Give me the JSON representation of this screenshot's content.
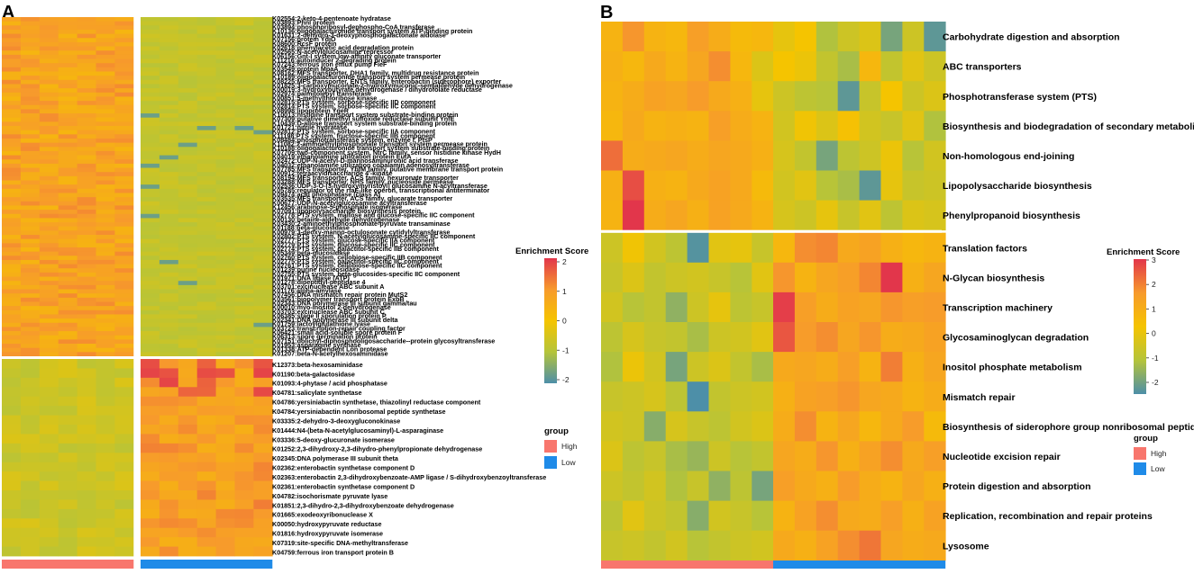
{
  "colors": {
    "high": "#f8766d",
    "low": "#1f8be8",
    "scale": [
      "#4d8fa8",
      "#b5c43a",
      "#f5c400",
      "#f79a2c",
      "#e2364b"
    ]
  },
  "panel_a": {
    "letter": "A",
    "legend": {
      "title": "Enrichment Score",
      "ticks": [
        "2",
        "1",
        "0",
        "-1",
        "-2"
      ],
      "group_title": "group",
      "group_high": "High",
      "group_low": "Low"
    }
  },
  "panel_b": {
    "letter": "B",
    "legend": {
      "title": "Enrichment Score",
      "ticks": [
        "3",
        "2",
        "1",
        "0",
        "-1",
        "-2"
      ],
      "group_title": "group",
      "group_high": "High",
      "group_low": "Low"
    }
  },
  "chart_data": [
    {
      "type": "heatmap",
      "title": "A",
      "value_range": [
        -2,
        2
      ],
      "columns": {
        "High": 7,
        "Low": 7
      },
      "row_split_after": 81,
      "rows": [
        "K02554:2-keto-4-pentenoate hydratase",
        "K03893:PhnI protein",
        "K03894:phosphoribosyl-dephospho-CoA transferase",
        "K10136:oligogalacturonide transport system ATP-binding protein",
        "K01631:2-dehydro-3-deoxyphosphogalactonate aldolase",
        "K07156:protein YdjO",
        "K08600:RcsF protein",
        "K02618:phenylacetic acid degradation protein",
        "K02565:N-acetylglucosamine repressor",
        "K06156:Gnt-I system low-affinity gluconate transporter",
        "K11216:autoinducer 2-degrading protein",
        "K07243:ferrous iron efflux pump FieF",
        "K03549:protein MpaA",
        "K08162:MFS transporter, DHA1 family, multidrug resistance protein",
        "K10189:oligogalacturonide transport system permease protein",
        "K08225:MFS transporter, ENTS family, enterobactin (siderophore) exporter",
        "K01825:3-carboxymuconate-2-hydroxymuconic-semialdehyde dehydrogenase",
        "K00019:3-hydroxybutyrate dehydrogenase / dihydrofolate reductase",
        "K02974:palmitoleoyl transferase",
        "K00851:5-methylthioribose kinase",
        "K02815:PTS system, sorbose-specific IID component",
        "K02814:PTS system, sorbose-specific IIC component",
        "K08998:lipoprotein YgeR",
        "K10013:histidine transport system substrate-binding protein",
        "K07309:putative dimethyl sulfoxide reductase subunit YnfE",
        "K10439:D-allose transport system substrate-binding protein",
        "K01721:nitrile hydratase",
        "K02812:PTS system, sorbose-specific IIA component",
        "K11198:PTS system, fructose-specific IIB component",
        "K08484:phosphotransferase system, enzyme I, PtsP",
        "K11082:2-aminoethylphosphonate transport system permease protein",
        "K10188:oligogalacturonide transport system substrate-binding protein",
        "K07709:two-component system, NtrC family, sensor histidine kinase HydH",
        "K04019:ethanolamine utilization protein EutA",
        "K02472:UDP-N-acetyl-D-mannosaminuronic acid transferase",
        "K04032:ethanolamine utilization cobalamin adenosyltransferase",
        "K07785:MFS transporter, YbfM family, putative membrane transport protein",
        "K00912:tetraacyldisaccharide 4'-kinase",
        "K08194:MFS transporter, ACS family, hexuronate transporter",
        "K03288:MFS transporter, NHS family, nucleoside permease",
        "K02536:UDP-3-O-[3-hydroxymyristoyl] glucosamine N-acyltransferase",
        "K05785:regulator of the rfaE-like operon, transcriptional antiterminator",
        "K09474:acid phosphatase (class A)",
        "K03535:MFS transporter, ACS family, glucarate transporter",
        "K00677:UDP-N-acetylglucosamine acyltransferase",
        "K12456:arabinose-5-phosphate isomerase",
        "K07091:lipopolysaccharide biosynthesis protein",
        "K02778:PTS system, maltose and glucose-specific IIC component",
        "K00130:betaine-aldehyde dehydrogenase",
        "K03430:2-aminoethylphosphonate-pyruvate transaminase",
        "K01188:beta-glucosidase",
        "K00979:3-deoxy-manno-octulosonate cytidylyltransferase",
        "K02802:PTS system, N-acetylglucosamine-specific IIC component",
        "K02777:PTS system, glucose-specific IIA component",
        "K02779:PTS system, glucose-specific IIC component",
        "K02774:PTS system, galactitol-specific IIB component",
        "K05349:beta-glucosidase",
        "K02760:PTS system, cellobiose-specific IIB component",
        "K02775:PTS system, galactitol-specific IIC component",
        "K02761:PTS system, cellobiose-specific IIC component",
        "K01239:purine nucleosidase",
        "K02755:PTS system, beta-glucosides-specific IIC component",
        "K01971:DNA ligase (ATP)",
        "K01278:dipeptidyl-peptidase 4",
        "K03701:excinuclease ABC subunit A",
        "K01176:alpha-amylase",
        "K07456:DNA mismatch repair protein MutS2",
        "K03561:biopolymer transport protein ExbB",
        "K02343:DNA polymerase III subunit gamma/tau",
        "K00010:myo-inositol 2-dehydrogenase",
        "K03703:excinuclease ABC subunit C",
        "K06385:stage II sporulation protein P",
        "K02341:DNA polymerase III subunit delta",
        "K01759:lactoylglutathione lyase",
        "K03723:transcription-repair coupling factor",
        "K06421:small acid-soluble spore protein F",
        "K06313:spore germination protein",
        "K07151:dolichyl-diphosphooligosaccharide--protein glycosyltransferase",
        "K01953:asparagine synthase",
        "K01338:ATP-dependent Lon protease",
        "K01207:beta-N-acetylhexosaminidase",
        "K12373:beta-hexosaminidase",
        "K01190:beta-galactosidase",
        "K01093:4-phytase / acid phosphatase",
        "K04781:salicylate synthetase",
        "K04786:yersiniabactin synthetase, thiazolinyl reductase component",
        "K04784:yersiniabactin nonribosomal peptide synthetase",
        "K03335:2-dehydro-3-deoxygluconokinase",
        "K01444:N4-(beta-N-acetylglucosaminyl)-L-asparaginase",
        "K03336:5-deoxy-glucuronate isomerase",
        "K01252:2,3-dihydroxy-2,3-dihydro-phenylpropionate dehydrogenase",
        "K02345:DNA polymerase III subunit theta",
        "K02362:enterobactin synthetase component D",
        "K02363:enterobactin 2,3-dihydroxybenzoate-AMP ligase / S-dihydroxybenzoyltransferase",
        "K02361:enterobactin synthetase component D",
        "K04782:isochorismate pyruvate lyase",
        "K01851:2,3-dihydro-2,3-dihydroxybenzoate dehydrogenase",
        "K01665:exodeoxyribonuclease X",
        "K00050:hydroxypyruvate reductase",
        "K01816:hydroxypyruvate isomerase",
        "K07319:site-specific DNA-methyltransferase",
        "K04759:ferrous iron transport protein B"
      ]
    },
    {
      "type": "heatmap",
      "title": "B",
      "value_range": [
        -2,
        3
      ],
      "columns": {
        "High": 8,
        "Low": 8
      },
      "row_split_after": 7,
      "rows": [
        "Carbohydrate digestion and absorption",
        "ABC transporters",
        "Phosphotransferase system (PTS)",
        "Biosynthesis and biodegradation of secondary metabolites",
        "Non-homologous end-joining",
        "Lipopolysaccharide biosynthesis",
        "Phenylpropanoid biosynthesis",
        "Translation factors",
        "N-Glycan biosynthesis",
        "Transcription machinery",
        "Glycosaminoglycan degradation",
        "Inositol phosphate metabolism",
        "Mismatch repair",
        "Biosynthesis of siderophore group nonribosomal peptides",
        "Nucleotide excision repair",
        "Protein digestion and absorption",
        "Replication, recombination and repair proteins",
        "Lysosome"
      ],
      "values": [
        [
          1.0,
          1.8,
          1.0,
          0.9,
          1.6,
          1.2,
          0.8,
          0.9,
          0.2,
          0.5,
          -0.8,
          -0.3,
          0.0,
          -1.5,
          -0.3,
          -1.8
        ],
        [
          1.1,
          0.9,
          1.3,
          1.0,
          1.4,
          1.9,
          0.9,
          0.0,
          0.5,
          0.3,
          -0.5,
          -0.9,
          0.9,
          -0.5,
          0.1,
          -0.3
        ],
        [
          1.0,
          1.2,
          1.5,
          1.4,
          1.7,
          1.3,
          1.1,
          0.2,
          -0.3,
          -0.6,
          -0.7,
          -1.8,
          -0.4,
          0.5,
          -0.3,
          0.0
        ],
        [
          0.9,
          1.3,
          1.0,
          1.1,
          1.0,
          1.6,
          1.2,
          1.0,
          -0.2,
          0.4,
          0.0,
          0.6,
          -0.2,
          -0.4,
          0.1,
          -0.8
        ],
        [
          2.3,
          1.2,
          1.3,
          1.4,
          1.2,
          1.4,
          1.3,
          1.1,
          -0.1,
          -0.5,
          -1.5,
          -0.6,
          -0.3,
          0.3,
          -0.7,
          -0.2
        ],
        [
          1.1,
          2.7,
          1.1,
          1.0,
          1.3,
          1.5,
          1.3,
          0.8,
          -0.2,
          0.1,
          -0.7,
          -0.9,
          -1.8,
          0.2,
          -0.4,
          -0.3
        ],
        [
          1.0,
          3.0,
          1.2,
          1.4,
          1.1,
          1.5,
          1.3,
          1.0,
          -0.1,
          -0.3,
          0.2,
          -0.4,
          0.1,
          -0.6,
          0.0,
          -0.1
        ],
        [
          -0.3,
          0.4,
          -0.2,
          -0.6,
          -1.9,
          0.1,
          0.2,
          -0.4,
          0.9,
          1.9,
          2.0,
          1.3,
          1.5,
          1.1,
          0.9,
          1.0
        ],
        [
          -0.4,
          0.0,
          -0.5,
          -0.3,
          -0.2,
          -0.4,
          -0.7,
          0.1,
          1.8,
          1.0,
          1.4,
          1.6,
          2.0,
          3.0,
          1.1,
          1.4
        ],
        [
          -0.2,
          -0.7,
          -0.5,
          -1.2,
          -0.3,
          0.2,
          -0.6,
          -0.4,
          2.9,
          1.6,
          1.2,
          1.5,
          1.4,
          1.8,
          1.6,
          1.7
        ],
        [
          -0.6,
          -0.1,
          -0.4,
          -0.5,
          -0.9,
          -0.3,
          -0.2,
          0.1,
          2.6,
          1.7,
          1.9,
          1.4,
          1.8,
          1.2,
          1.3,
          1.5
        ],
        [
          -0.8,
          0.3,
          -0.2,
          -1.5,
          -0.3,
          0.0,
          -0.5,
          -0.9,
          1.3,
          1.4,
          1.2,
          1.6,
          1.0,
          2.1,
          1.1,
          1.4
        ],
        [
          -0.4,
          -0.3,
          -0.1,
          -0.6,
          -2.0,
          -0.5,
          -0.3,
          -0.2,
          1.1,
          1.5,
          1.6,
          1.8,
          1.4,
          1.3,
          1.0,
          1.2
        ],
        [
          -0.2,
          -0.3,
          -1.3,
          -0.1,
          -0.4,
          -0.6,
          -0.2,
          0.0,
          1.2,
          1.9,
          1.0,
          1.4,
          0.9,
          1.3,
          1.7,
          0.8
        ],
        [
          0.0,
          -0.6,
          -0.4,
          -0.9,
          -1.1,
          -0.3,
          -0.7,
          -0.5,
          1.4,
          1.2,
          1.8,
          1.1,
          1.5,
          1.9,
          1.3,
          1.6
        ],
        [
          -0.3,
          -0.5,
          -0.2,
          -0.8,
          -0.4,
          -1.2,
          -0.6,
          -1.5,
          1.6,
          1.3,
          1.1,
          1.7,
          1.2,
          1.0,
          1.4,
          1.1
        ],
        [
          -0.6,
          0.1,
          -0.3,
          -0.5,
          -1.3,
          -0.2,
          -0.4,
          -0.7,
          1.0,
          1.5,
          1.9,
          1.3,
          1.2,
          1.6,
          1.1,
          1.5
        ],
        [
          -0.4,
          -0.3,
          -0.5,
          -0.2,
          -0.7,
          -0.5,
          -0.3,
          -0.2,
          1.3,
          1.1,
          1.5,
          1.9,
          2.2,
          1.4,
          1.2,
          1.3
        ]
      ]
    }
  ]
}
